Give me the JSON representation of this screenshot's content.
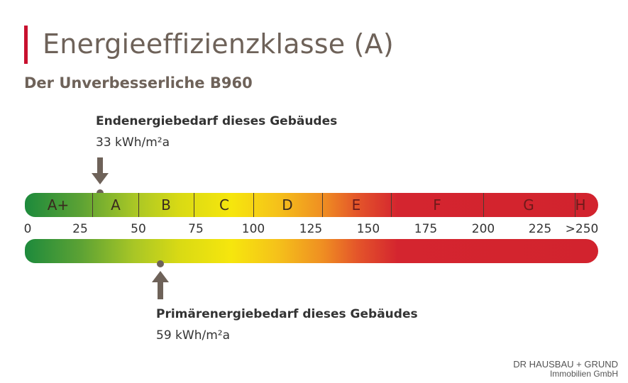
{
  "header": {
    "title": "Energieeffizienzklasse (A)",
    "subtitle": "Der Unverbesserliche B960"
  },
  "end_energy": {
    "label": "Endenergiebedarf dieses Gebäudes",
    "value": "33 kWh/m²a",
    "numeric": 33
  },
  "primary_energy": {
    "label": "Primärenergiebedarf dieses Gebäudes",
    "value": "59 kWh/m²a",
    "numeric": 59
  },
  "classes": [
    "A+",
    "A",
    "B",
    "C",
    "D",
    "E",
    "F",
    "G",
    "H"
  ],
  "ticks": [
    "0",
    "25",
    "50",
    "75",
    "100",
    "125",
    "150",
    "175",
    "200",
    "225",
    ">250"
  ],
  "colors": {
    "accent": "#c8102e",
    "text_brown": "#6e6259",
    "green": "#1d8a3c",
    "yellow": "#f6e60d",
    "orange": "#ef8e22",
    "red": "#d2232e"
  },
  "brand": {
    "line1": "DR HAUSBAU + GRUND",
    "line2": "Immobilien GmbH"
  }
}
